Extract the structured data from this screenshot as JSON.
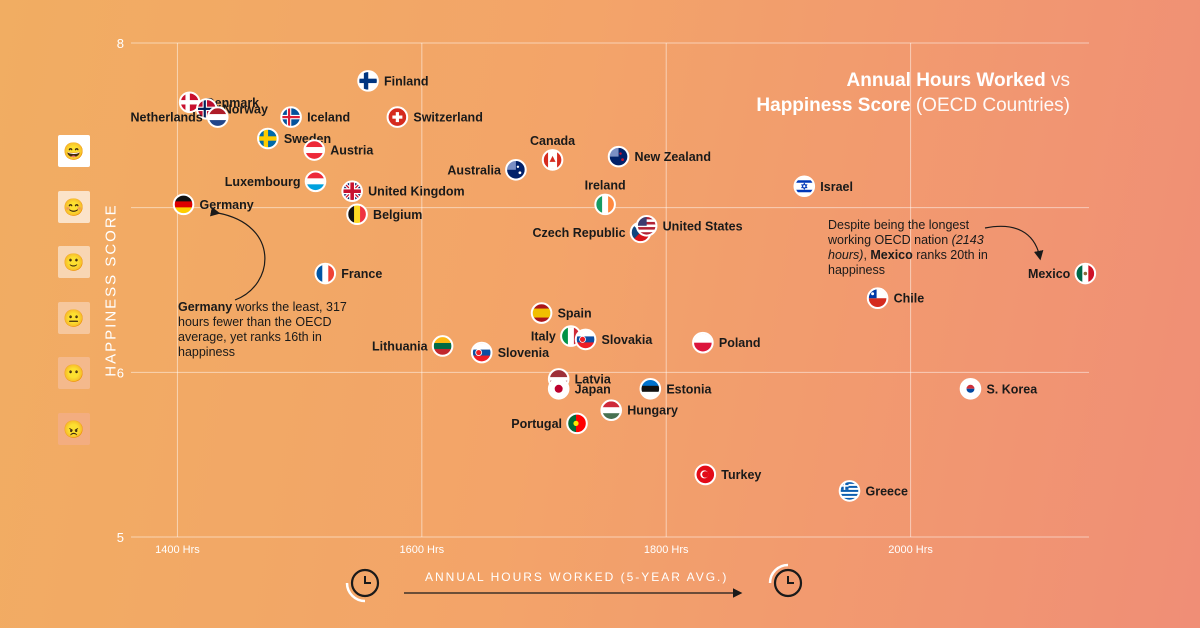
{
  "title": {
    "bold_1": "Annual Hours Worked",
    "light_1": " vs",
    "bold_2": "Happiness Score",
    "light_2": " (OECD Countries)"
  },
  "happiness_scale": [
    {
      "icon": "very-happy-face-icon",
      "glyph": "😄",
      "bg": "#ffffff"
    },
    {
      "icon": "happy-face-icon",
      "glyph": "😊",
      "bg": "#fbe3c9"
    },
    {
      "icon": "smiling-face-icon",
      "glyph": "🙂",
      "bg": "#f8d6b3"
    },
    {
      "icon": "neutral-face-icon",
      "glyph": "😐",
      "bg": "#f6c79d"
    },
    {
      "icon": "blank-face-icon",
      "glyph": "😶",
      "bg": "#f4b98c"
    },
    {
      "icon": "angry-face-icon",
      "glyph": "😠",
      "bg": "#f3ad80"
    }
  ],
  "clock_icons": [
    "clock-icon",
    "clock-rewind-icon"
  ],
  "annotations": {
    "germany": {
      "bold": "Germany",
      "text": " works the least, 317 hours fewer than the OECD average, yet ranks 16th in happiness"
    },
    "mexico": {
      "text_1": "Despite being the longest working OECD nation ",
      "italic": "(2143 hours)",
      "text_2": ", ",
      "bold": "Mexico",
      "text_3": " ranks 20th in happiness"
    }
  },
  "chart_data": {
    "type": "scatter",
    "title": "Annual Hours Worked vs Happiness Score (OECD Countries)",
    "xlabel": "ANNUAL HOURS WORKED (5-YEAR AVG.)",
    "ylabel": "HAPPINESS SCORE",
    "xlim": [
      1362,
      2146
    ],
    "ylim": [
      5,
      8
    ],
    "x_ticks": [
      1400,
      1600,
      1800,
      2000
    ],
    "x_tick_labels": [
      "1400 Hrs",
      "1600 Hrs",
      "1800 Hrs",
      "2000 Hrs"
    ],
    "y_ticks": [
      5,
      6,
      7,
      8
    ],
    "y_tick_labels": [
      "5",
      "6",
      "",
      "8"
    ],
    "grid": true,
    "points": [
      {
        "country": "Germany",
        "x": 1405,
        "y": 7.02,
        "label_side": "right",
        "flag": "germany-flag"
      },
      {
        "country": "Denmark",
        "x": 1410,
        "y": 7.64,
        "label_side": "right",
        "flag": "denmark-flag"
      },
      {
        "country": "Norway",
        "x": 1424,
        "y": 7.6,
        "label_side": "right",
        "flag": "norway-flag"
      },
      {
        "country": "Netherlands",
        "x": 1433,
        "y": 7.55,
        "label_side": "left",
        "flag": "netherlands-flag"
      },
      {
        "country": "Finland",
        "x": 1556,
        "y": 7.77,
        "label_side": "right",
        "flag": "finland-flag"
      },
      {
        "country": "Iceland",
        "x": 1493,
        "y": 7.55,
        "label_side": "right",
        "flag": "iceland-flag"
      },
      {
        "country": "Switzerland",
        "x": 1580,
        "y": 7.55,
        "label_side": "right",
        "flag": "switzerland-flag"
      },
      {
        "country": "Sweden",
        "x": 1474,
        "y": 7.42,
        "label_side": "right",
        "flag": "sweden-flag"
      },
      {
        "country": "Austria",
        "x": 1512,
        "y": 7.35,
        "label_side": "right",
        "flag": "austria-flag"
      },
      {
        "country": "Luxembourg",
        "x": 1513,
        "y": 7.16,
        "label_side": "left",
        "flag": "luxembourg-flag"
      },
      {
        "country": "United Kingdom",
        "x": 1543,
        "y": 7.1,
        "label_side": "right",
        "flag": "uk-flag"
      },
      {
        "country": "Belgium",
        "x": 1547,
        "y": 6.96,
        "label_side": "right",
        "flag": "belgium-flag"
      },
      {
        "country": "France",
        "x": 1521,
        "y": 6.6,
        "label_side": "right",
        "flag": "france-flag"
      },
      {
        "country": "Australia",
        "x": 1677,
        "y": 7.23,
        "label_side": "left",
        "flag": "australia-flag"
      },
      {
        "country": "Canada",
        "x": 1707,
        "y": 7.29,
        "label_side": "top",
        "flag": "canada-flag"
      },
      {
        "country": "New Zealand",
        "x": 1761,
        "y": 7.31,
        "label_side": "right",
        "flag": "new-zealand-flag"
      },
      {
        "country": "Ireland",
        "x": 1750,
        "y": 7.02,
        "label_side": "top",
        "flag": "ireland-flag"
      },
      {
        "country": "Israel",
        "x": 1913,
        "y": 7.13,
        "label_side": "right",
        "flag": "israel-flag"
      },
      {
        "country": "Czech Republic",
        "x": 1779,
        "y": 6.85,
        "label_side": "left",
        "flag": "czech-flag"
      },
      {
        "country": "United States",
        "x": 1784,
        "y": 6.89,
        "label_side": "right",
        "flag": "usa-flag"
      },
      {
        "country": "Mexico",
        "x": 2143,
        "y": 6.6,
        "label_side": "left",
        "flag": "mexico-flag"
      },
      {
        "country": "Chile",
        "x": 1973,
        "y": 6.45,
        "label_side": "right",
        "flag": "chile-flag"
      },
      {
        "country": "Spain",
        "x": 1698,
        "y": 6.36,
        "label_side": "right",
        "flag": "spain-flag"
      },
      {
        "country": "Italy",
        "x": 1722,
        "y": 6.22,
        "label_side": "left",
        "flag": "italy-flag"
      },
      {
        "country": "Slovakia",
        "x": 1734,
        "y": 6.2,
        "label_side": "right",
        "flag": "slovakia-flag"
      },
      {
        "country": "Poland",
        "x": 1830,
        "y": 6.18,
        "label_side": "right",
        "flag": "poland-flag"
      },
      {
        "country": "Lithuania",
        "x": 1617,
        "y": 6.16,
        "label_side": "left",
        "flag": "lithuania-flag"
      },
      {
        "country": "Slovenia",
        "x": 1649,
        "y": 6.12,
        "label_side": "right",
        "flag": "slovenia-flag"
      },
      {
        "country": "Latvia",
        "x": 1712,
        "y": 5.96,
        "label_side": "right",
        "flag": "latvia-flag"
      },
      {
        "country": "Japan",
        "x": 1712,
        "y": 5.9,
        "label_side": "right",
        "flag": "japan-flag"
      },
      {
        "country": "Estonia",
        "x": 1787,
        "y": 5.9,
        "label_side": "right",
        "flag": "estonia-flag"
      },
      {
        "country": "S. Korea",
        "x": 2049,
        "y": 5.9,
        "label_side": "right",
        "flag": "south-korea-flag"
      },
      {
        "country": "Hungary",
        "x": 1755,
        "y": 5.77,
        "label_side": "right",
        "flag": "hungary-flag"
      },
      {
        "country": "Portugal",
        "x": 1727,
        "y": 5.69,
        "label_side": "left",
        "flag": "portugal-flag"
      },
      {
        "country": "Turkey",
        "x": 1832,
        "y": 5.38,
        "label_side": "right",
        "flag": "turkey-flag"
      },
      {
        "country": "Greece",
        "x": 1950,
        "y": 5.28,
        "label_side": "right",
        "flag": "greece-flag"
      }
    ]
  }
}
